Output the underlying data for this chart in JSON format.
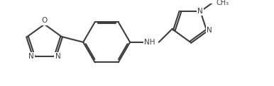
{
  "background": "#ffffff",
  "line_color": "#3d3d3d",
  "line_width": 1.5,
  "font_size": 7.5,
  "figsize": [
    3.86,
    1.22
  ],
  "dpi": 100,
  "xlim": [
    -0.15,
    5.9
  ],
  "ylim": [
    0.3,
    2.15
  ]
}
